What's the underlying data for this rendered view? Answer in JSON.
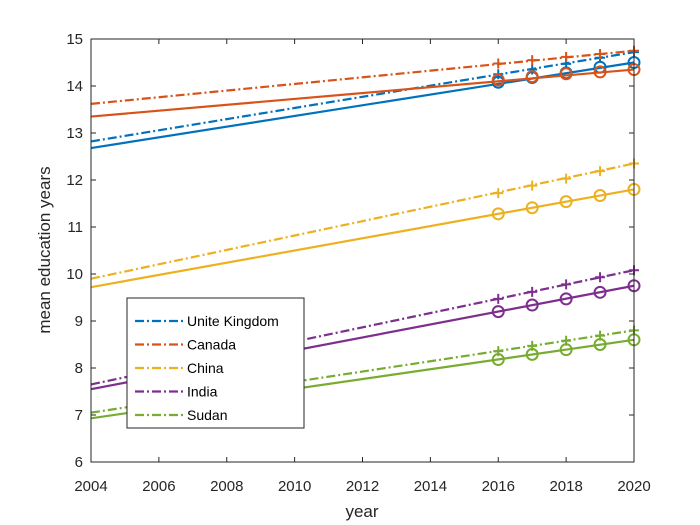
{
  "chart_data": {
    "type": "line",
    "xlabel": "year",
    "ylabel": "mean education years",
    "xlim": [
      2004,
      2020
    ],
    "ylim": [
      6,
      15
    ],
    "xticks": [
      "2004",
      "2006",
      "2008",
      "2010",
      "2012",
      "2014",
      "2016",
      "2018",
      "2020"
    ],
    "yticks": [
      "6",
      "7",
      "8",
      "9",
      "10",
      "11",
      "12",
      "13",
      "14",
      "15"
    ],
    "grid": false,
    "legend_position": "bottom-left",
    "series": [
      {
        "name": "Unite Kingdom",
        "color": "#0072BD",
        "solid_line": {
          "x": [
            2004,
            2020
          ],
          "y": [
            12.68,
            14.5
          ]
        },
        "dashed_line": {
          "x": [
            2004,
            2020
          ],
          "y": [
            12.82,
            14.72
          ]
        },
        "circle_points": {
          "x": [
            2016,
            2017,
            2018,
            2019,
            2020
          ],
          "y": [
            14.08,
            14.18,
            14.28,
            14.4,
            14.5
          ]
        },
        "plus_points": {
          "x": [
            2016,
            2017,
            2018,
            2019,
            2020
          ],
          "y": [
            14.25,
            14.35,
            14.47,
            14.6,
            14.72
          ]
        }
      },
      {
        "name": "Canada",
        "color": "#D95319",
        "solid_line": {
          "x": [
            2004,
            2020
          ],
          "y": [
            13.35,
            14.35
          ]
        },
        "dashed_line": {
          "x": [
            2004,
            2020
          ],
          "y": [
            13.62,
            14.75
          ]
        },
        "circle_points": {
          "x": [
            2016,
            2017,
            2018,
            2019,
            2020
          ],
          "y": [
            14.13,
            14.2,
            14.26,
            14.3,
            14.35
          ]
        },
        "plus_points": {
          "x": [
            2016,
            2017,
            2018,
            2019,
            2020
          ],
          "y": [
            14.48,
            14.55,
            14.62,
            14.68,
            14.75
          ]
        }
      },
      {
        "name": "China",
        "color": "#EDB120",
        "solid_line": {
          "x": [
            2004,
            2020
          ],
          "y": [
            9.72,
            11.8
          ]
        },
        "dashed_line": {
          "x": [
            2004,
            2020
          ],
          "y": [
            9.9,
            12.35
          ]
        },
        "circle_points": {
          "x": [
            2016,
            2017,
            2018,
            2019,
            2020
          ],
          "y": [
            11.28,
            11.41,
            11.54,
            11.67,
            11.8
          ]
        },
        "plus_points": {
          "x": [
            2016,
            2017,
            2018,
            2019,
            2020
          ],
          "y": [
            11.72,
            11.88,
            12.03,
            12.19,
            12.35
          ]
        }
      },
      {
        "name": "India",
        "color": "#7E2F8E",
        "solid_line": {
          "x": [
            2004,
            2020
          ],
          "y": [
            7.55,
            9.75
          ]
        },
        "dashed_line": {
          "x": [
            2004,
            2020
          ],
          "y": [
            7.65,
            10.08
          ]
        },
        "circle_points": {
          "x": [
            2016,
            2017,
            2018,
            2019,
            2020
          ],
          "y": [
            9.2,
            9.34,
            9.47,
            9.61,
            9.75
          ]
        },
        "plus_points": {
          "x": [
            2016,
            2017,
            2018,
            2019,
            2020
          ],
          "y": [
            9.47,
            9.62,
            9.78,
            9.93,
            10.08
          ]
        }
      },
      {
        "name": "Sudan",
        "color": "#77AC30",
        "solid_line": {
          "x": [
            2004,
            2020
          ],
          "y": [
            6.93,
            8.6
          ]
        },
        "dashed_line": {
          "x": [
            2004,
            2020
          ],
          "y": [
            7.05,
            8.8
          ]
        },
        "circle_points": {
          "x": [
            2016,
            2017,
            2018,
            2019,
            2020
          ],
          "y": [
            8.18,
            8.29,
            8.39,
            8.5,
            8.6
          ]
        },
        "plus_points": {
          "x": [
            2016,
            2017,
            2018,
            2019,
            2020
          ],
          "y": [
            8.36,
            8.47,
            8.58,
            8.69,
            8.8
          ]
        }
      }
    ]
  }
}
